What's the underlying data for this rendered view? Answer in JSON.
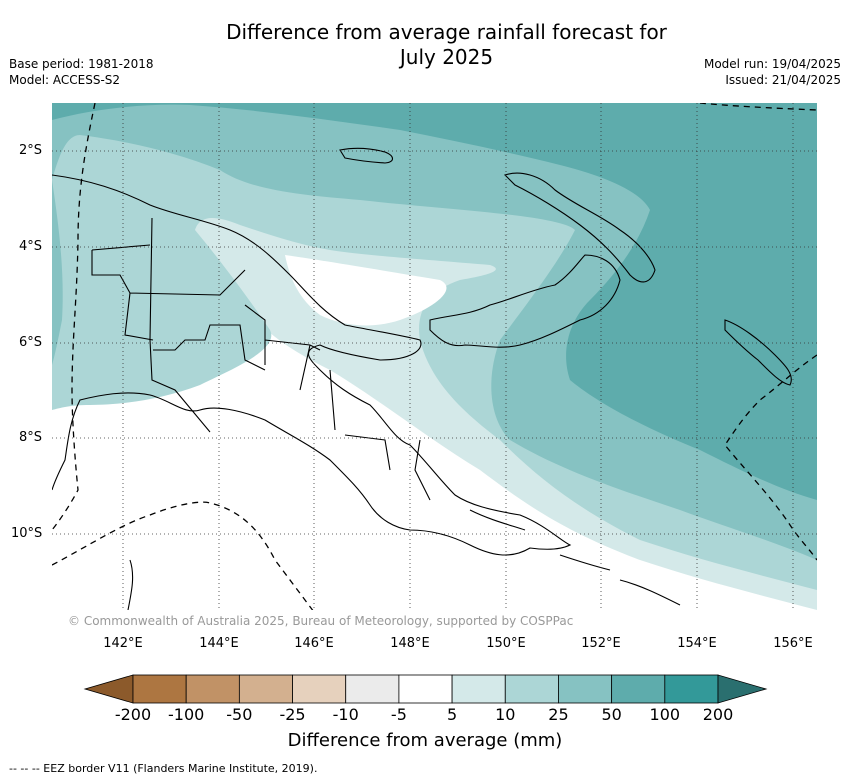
{
  "title": {
    "line1": "Difference from average rainfall forecast for",
    "line2": "July 2025"
  },
  "meta": {
    "base_period": "Base period: 1981-2018",
    "model": "Model: ACCESS-S2",
    "model_run": "Model run: 19/04/2025",
    "issued": "Issued: 21/04/2025"
  },
  "map": {
    "latitude_labels": [
      "2°S",
      "4°S",
      "6°S",
      "8°S",
      "10°S"
    ],
    "longitude_labels": [
      "142°E",
      "144°E",
      "146°E",
      "148°E",
      "150°E",
      "152°E",
      "154°E",
      "156°E"
    ],
    "copyright": "© Commonwealth of Australia 2025, Bureau of Meteorology, supported by COSPPac",
    "gridlines": true
  },
  "colorbar": {
    "ticks": [
      "-200",
      "-100",
      "-50",
      "-25",
      "-10",
      "-5",
      "5",
      "10",
      "25",
      "50",
      "100",
      "200"
    ],
    "colors": [
      "#8c5a2b",
      "#ad7641",
      "#c19266",
      "#d3b08f",
      "#e6d1bd",
      "#ebebeb",
      "#ffffff",
      "#d4e9e9",
      "#acd6d6",
      "#86c2c2",
      "#5eacac",
      "#339999",
      "#2a6f6f"
    ],
    "title": "Difference from average (mm)"
  },
  "footnote": "--  --  -- EEZ border V11 (Flanders Marine Institute, 2019)."
}
